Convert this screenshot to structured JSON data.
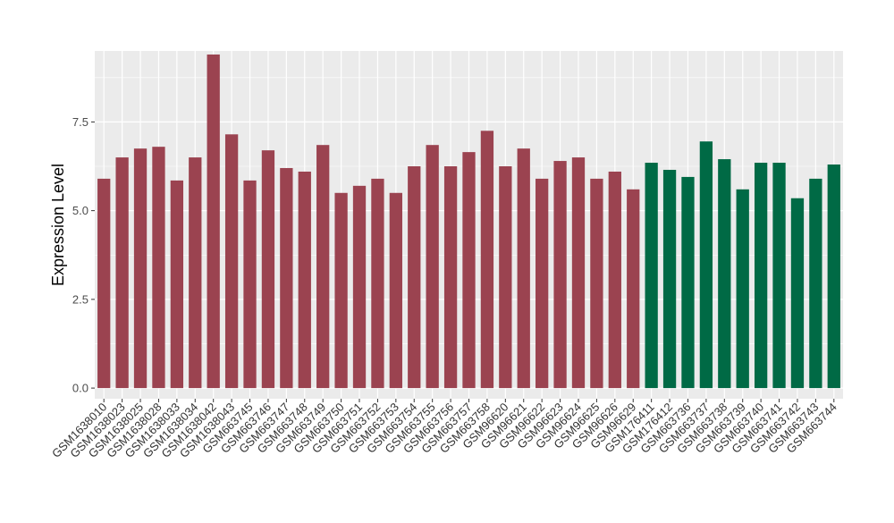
{
  "chart_data": {
    "type": "bar",
    "ylabel": "Expression Level",
    "xlabel": "",
    "title": "",
    "ylim": [
      -0.3,
      9.5
    ],
    "yticks": [
      0.0,
      2.5,
      5.0,
      7.5
    ],
    "ytick_labels": [
      "0.0",
      "2.5",
      "5.0",
      "7.5"
    ],
    "grid": true,
    "legend": "none",
    "colors": {
      "group1": "#9B4350",
      "group2": "#006A45",
      "panel": "#EBEBEB",
      "grid": "#FFFFFF"
    },
    "categories": [
      "GSM1638010",
      "GSM1638023",
      "GSM1638025",
      "GSM1638028",
      "GSM1638033",
      "GSM1638034",
      "GSM1638042",
      "GSM1638043",
      "GSM663745",
      "GSM663746",
      "GSM663747",
      "GSM663748",
      "GSM663749",
      "GSM663750",
      "GSM663751",
      "GSM663752",
      "GSM663753",
      "GSM663754",
      "GSM663755",
      "GSM663756",
      "GSM663757",
      "GSM663758",
      "GSM96620",
      "GSM96621",
      "GSM96622",
      "GSM96623",
      "GSM96624",
      "GSM96625",
      "GSM96626",
      "GSM96629",
      "GSM176411",
      "GSM176412",
      "GSM663736",
      "GSM663737",
      "GSM663738",
      "GSM663739",
      "GSM663740",
      "GSM663741",
      "GSM663742",
      "GSM663743",
      "GSM663744"
    ],
    "values": [
      5.9,
      6.5,
      6.75,
      6.8,
      5.85,
      6.5,
      9.4,
      7.15,
      5.85,
      6.7,
      6.2,
      6.1,
      6.85,
      5.5,
      5.7,
      5.9,
      5.5,
      6.25,
      6.85,
      6.25,
      6.65,
      7.25,
      6.25,
      6.75,
      5.9,
      6.4,
      6.5,
      5.9,
      6.1,
      5.6,
      6.35,
      6.15,
      5.95,
      6.95,
      6.45,
      5.6,
      6.35,
      6.35,
      5.35,
      5.9,
      6.3
    ],
    "groups": [
      1,
      1,
      1,
      1,
      1,
      1,
      1,
      1,
      1,
      1,
      1,
      1,
      1,
      1,
      1,
      1,
      1,
      1,
      1,
      1,
      1,
      1,
      1,
      1,
      1,
      1,
      1,
      1,
      1,
      1,
      2,
      2,
      2,
      2,
      2,
      2,
      2,
      2,
      2,
      2,
      2
    ]
  }
}
